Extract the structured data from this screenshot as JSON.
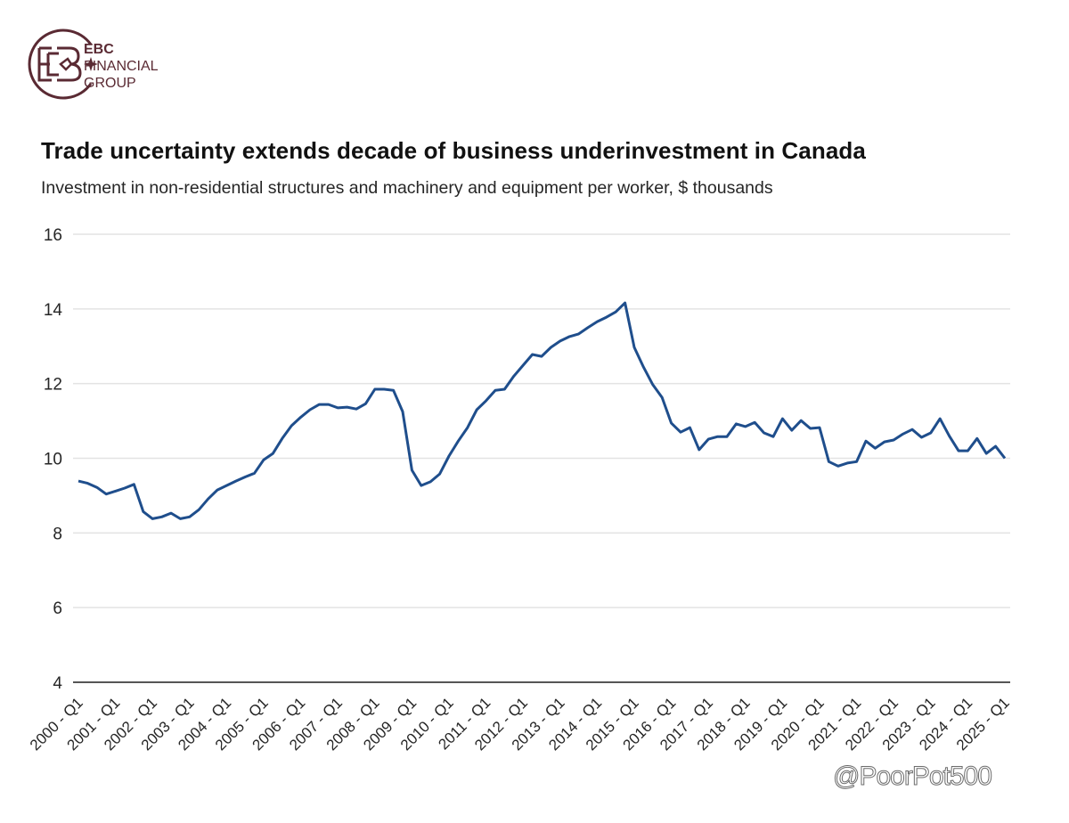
{
  "brand": {
    "name_line1": "EBC",
    "name_line2": "FINANCIAL",
    "name_line3": "GROUP",
    "color": "#5a2a33"
  },
  "watermark": "@PoorPot500",
  "chart_data": {
    "type": "line",
    "title": "Trade uncertainty extends decade of business underinvestment in Canada",
    "subtitle": "Investment in non-residential structures and machinery and equipment per worker, $ thousands",
    "xlabel": "",
    "ylabel": "",
    "ylim": [
      4,
      16
    ],
    "yticks": [
      4,
      6,
      8,
      10,
      12,
      14,
      16
    ],
    "grid": true,
    "legend": "none",
    "line_color": "#1f4e8c",
    "xtick_labels": [
      "2000 - Q1",
      "2001 - Q1",
      "2002 - Q1",
      "2003 - Q1",
      "2004 - Q1",
      "2005 - Q1",
      "2006 - Q1",
      "2007 - Q1",
      "2008 - Q1",
      "2009 - Q1",
      "2010 - Q1",
      "2011 - Q1",
      "2012 - Q1",
      "2013 - Q1",
      "2014 - Q1",
      "2015 - Q1",
      "2016 - Q1",
      "2017 - Q1",
      "2018 - Q1",
      "2019 - Q1",
      "2020 - Q1",
      "2021 - Q1",
      "2022 - Q1",
      "2023 - Q1",
      "2024 - Q1",
      "2025 - Q1"
    ],
    "series": [
      {
        "name": "Investment per worker ($ thousands)",
        "start": "2000 - Q1",
        "frequency": "quarterly",
        "values": [
          9.39,
          9.33,
          9.22,
          9.04,
          9.12,
          9.2,
          9.3,
          8.57,
          8.38,
          8.43,
          8.53,
          8.38,
          8.43,
          8.62,
          8.91,
          9.15,
          9.27,
          9.39,
          9.5,
          9.6,
          9.96,
          10.13,
          10.53,
          10.87,
          11.1,
          11.3,
          11.44,
          11.44,
          11.35,
          11.37,
          11.32,
          11.46,
          11.85,
          11.85,
          11.82,
          11.25,
          9.68,
          9.27,
          9.37,
          9.58,
          10.06,
          10.46,
          10.82,
          11.3,
          11.54,
          11.82,
          11.85,
          12.2,
          12.49,
          12.78,
          12.73,
          12.97,
          13.14,
          13.26,
          13.33,
          13.5,
          13.66,
          13.78,
          13.92,
          14.16,
          12.97,
          12.44,
          11.97,
          11.63,
          10.94,
          10.7,
          10.82,
          10.23,
          10.51,
          10.58,
          10.58,
          10.92,
          10.85,
          10.96,
          10.68,
          10.58,
          11.06,
          10.75,
          11.01,
          10.8,
          10.82,
          9.91,
          9.79,
          9.87,
          9.91,
          10.46,
          10.27,
          10.44,
          10.49,
          10.65,
          10.77,
          10.56,
          10.68,
          11.06,
          10.6,
          10.2,
          10.2,
          10.53,
          10.13,
          10.32,
          10.0
        ]
      }
    ]
  }
}
